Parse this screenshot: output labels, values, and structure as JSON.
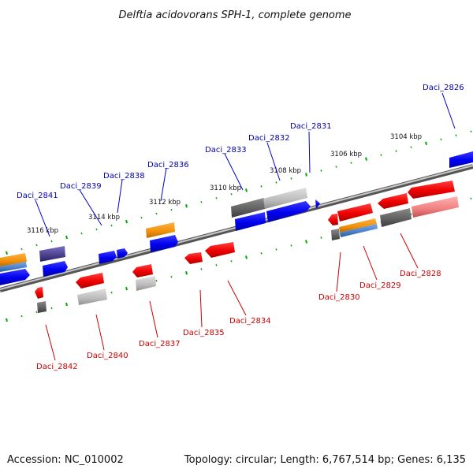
{
  "title": "Delftia acidovorans SPH-1, complete genome",
  "footer": {
    "accession": "Accession: NC_010002",
    "summary": "Topology: circular; Length: 6,767,514 bp; Genes: 6,135"
  },
  "colors": {
    "forward_gene": "#0000ee",
    "reverse_gene": "#ee0000",
    "forward_label": "#0000aa",
    "reverse_label": "#cc0000",
    "tick": "#00aa00",
    "backbone": "#7a7a7a",
    "orange_track": "#f0900a",
    "steel_track": "#4a80c8",
    "gray_track": "#666666",
    "light_gray_track": "#bbbbbb",
    "purple_track": "#4a3f8c"
  },
  "map": {
    "position_unit": "kbp",
    "strand_ticks_top": "forward",
    "strand_ticks_bottom": "reverse",
    "kbp_markers": [
      {
        "label": "3104 kbp",
        "pos": 3104
      },
      {
        "label": "3106 kbp",
        "pos": 3106
      },
      {
        "label": "3108 kbp",
        "pos": 3108
      },
      {
        "label": "3110 kbp",
        "pos": 3110
      },
      {
        "label": "3112 kbp",
        "pos": 3112
      },
      {
        "label": "3114 kbp",
        "pos": 3114
      },
      {
        "label": "3116 kbp",
        "pos": 3116
      }
    ],
    "genes": [
      {
        "id": "Daci_2826",
        "strand": "+"
      },
      {
        "id": "Daci_2828",
        "strand": "-"
      },
      {
        "id": "Daci_2829",
        "strand": "-"
      },
      {
        "id": "Daci_2830",
        "strand": "-"
      },
      {
        "id": "Daci_2831",
        "strand": "+"
      },
      {
        "id": "Daci_2832",
        "strand": "+"
      },
      {
        "id": "Daci_2833",
        "strand": "+"
      },
      {
        "id": "Daci_2834",
        "strand": "-"
      },
      {
        "id": "Daci_2835",
        "strand": "-"
      },
      {
        "id": "Daci_2836",
        "strand": "+"
      },
      {
        "id": "Daci_2837",
        "strand": "-"
      },
      {
        "id": "Daci_2838",
        "strand": "+"
      },
      {
        "id": "Daci_2839",
        "strand": "+"
      },
      {
        "id": "Daci_2840",
        "strand": "-"
      },
      {
        "id": "Daci_2841",
        "strand": "+"
      },
      {
        "id": "Daci_2842",
        "strand": "-"
      }
    ]
  }
}
